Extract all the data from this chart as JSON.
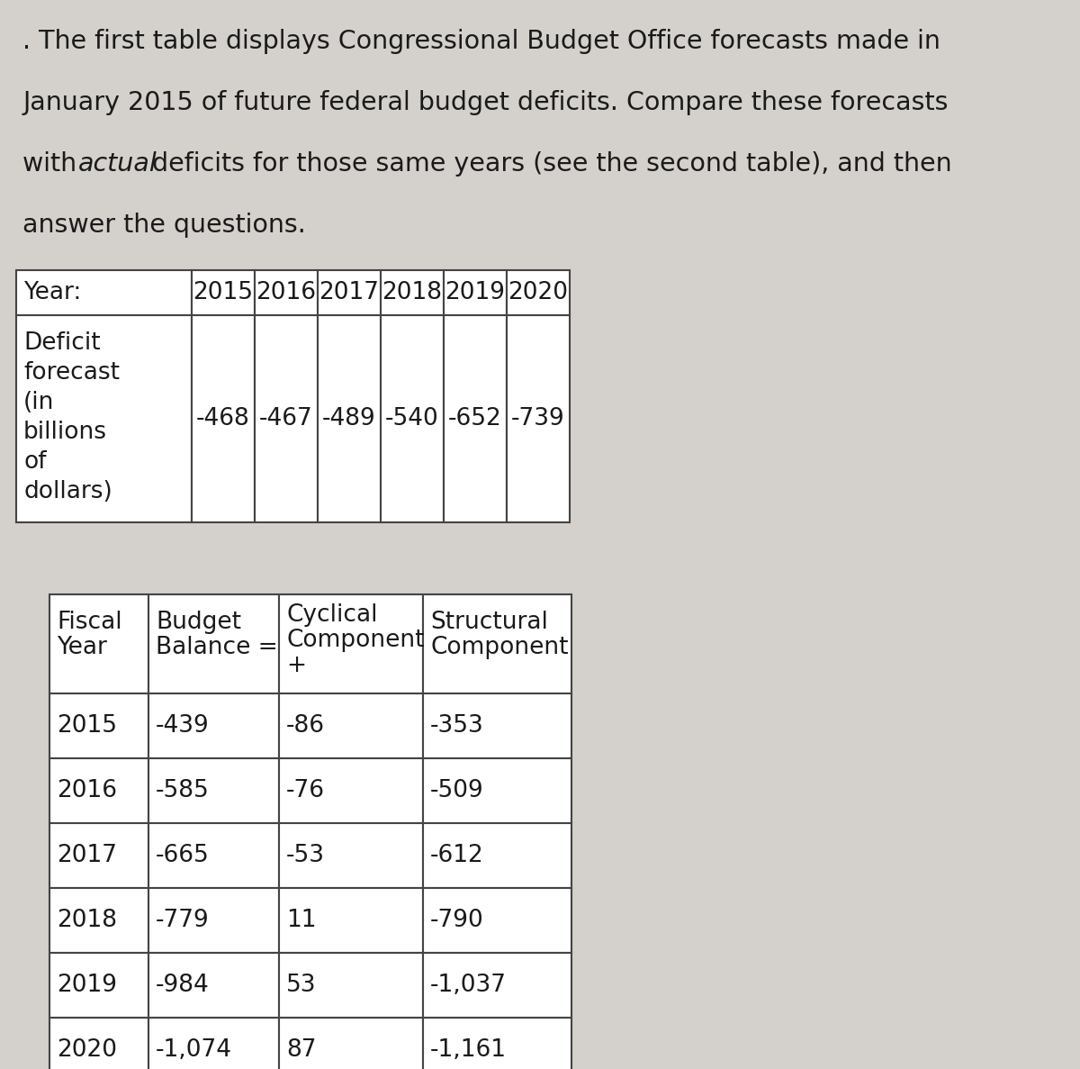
{
  "bg_color": "#d4d0cb",
  "text_color": "#1a1a1a",
  "intro_lines": [
    ". The first table displays Congressional Budget Office forecasts made in",
    "January 2015 of future federal budget deficits. Compare these forecasts",
    "with {actual} deficits for those same years (see the second table), and then",
    "answer the questions."
  ],
  "table1_col_headers": [
    "Year:",
    "2015",
    "2016",
    "2017",
    "2018",
    "2019",
    "2020"
  ],
  "table1_row_label_lines": [
    "Deficit",
    "forecast",
    "(in",
    "billions",
    "of",
    "dollars)"
  ],
  "table1_values": [
    "-468",
    "-467",
    "-489",
    "-540",
    "-652",
    "-739"
  ],
  "table2_col0_header_line1": "Fiscal",
  "table2_col0_header_line2": "Year",
  "table2_col1_header_line1": "Budget",
  "table2_col1_header_line2": "Balance =",
  "table2_col2_header_line1": "Cyclical",
  "table2_col2_header_line2": "Component",
  "table2_col2_header_line3": "+",
  "table2_col3_header_line1": "Structural",
  "table2_col3_header_line2": "Component",
  "table2_rows": [
    [
      "2015",
      "-439",
      "-86",
      "-353"
    ],
    [
      "2016",
      "-585",
      "-76",
      "-509"
    ],
    [
      "2017",
      "-665",
      "-53",
      "-612"
    ],
    [
      "2018",
      "-779",
      "11",
      "-790"
    ],
    [
      "2019",
      "-984",
      "53",
      "-1,037"
    ],
    [
      "2020",
      "-1,074",
      "87",
      "-1,161"
    ]
  ],
  "font_size_intro": 20.5,
  "font_size_table1": 19,
  "font_size_table2": 19
}
